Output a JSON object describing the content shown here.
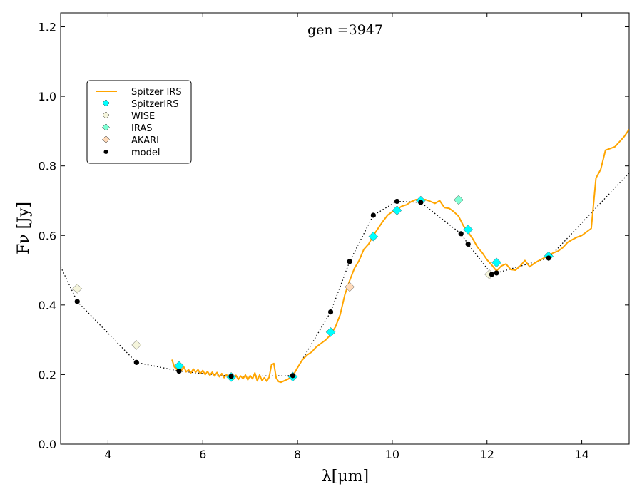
{
  "chart_data": {
    "type": "line",
    "title": "gen =3947",
    "xlabel": "λ[μm]",
    "ylabel": "Fν [Jy]",
    "xlim": [
      3,
      15
    ],
    "ylim": [
      0.0,
      1.24
    ],
    "xticks": [
      4,
      6,
      8,
      10,
      12,
      14
    ],
    "xtick_labels": [
      "4",
      "6",
      "8",
      "10",
      "12",
      "14"
    ],
    "yticks": [
      0.0,
      0.2,
      0.4,
      0.6,
      0.8,
      1.0,
      1.2
    ],
    "ytick_labels": [
      "0.0",
      "0.2",
      "0.4",
      "0.6",
      "0.8",
      "1.0",
      "1.2"
    ],
    "legend": {
      "placement": "upper-left",
      "entries": [
        "Spitzer IRS",
        "SpitzerIRS",
        "WISE",
        "IRAS",
        "AKARI",
        "model"
      ]
    },
    "series": [
      {
        "name": "Spitzer IRS",
        "kind": "line",
        "color": "#FFA500",
        "x": [
          5.35,
          5.4,
          5.45,
          5.5,
          5.55,
          5.6,
          5.65,
          5.7,
          5.75,
          5.8,
          5.85,
          5.9,
          5.95,
          6.0,
          6.05,
          6.1,
          6.15,
          6.2,
          6.25,
          6.3,
          6.35,
          6.4,
          6.45,
          6.5,
          6.55,
          6.6,
          6.65,
          6.7,
          6.75,
          6.8,
          6.85,
          6.9,
          6.95,
          7.0,
          7.05,
          7.1,
          7.15,
          7.2,
          7.25,
          7.3,
          7.35,
          7.4,
          7.45,
          7.5,
          7.55,
          7.6,
          7.65,
          7.7,
          7.8,
          7.9,
          8.0,
          8.1,
          8.2,
          8.3,
          8.4,
          8.5,
          8.6,
          8.7,
          8.8,
          8.9,
          9.0,
          9.1,
          9.2,
          9.3,
          9.4,
          9.5,
          9.6,
          9.7,
          9.8,
          9.9,
          10.0,
          10.1,
          10.2,
          10.3,
          10.4,
          10.5,
          10.6,
          10.7,
          10.8,
          10.9,
          11.0,
          11.1,
          11.2,
          11.3,
          11.4,
          11.5,
          11.6,
          11.7,
          11.8,
          11.9,
          12.0,
          12.1,
          12.2,
          12.3,
          12.4,
          12.5,
          12.6,
          12.7,
          12.8,
          12.9,
          13.0,
          13.1,
          13.2,
          13.3,
          13.4,
          13.5,
          13.6,
          13.7,
          13.8,
          13.9,
          14.0,
          14.1,
          14.2,
          14.3,
          14.4,
          14.5,
          14.6,
          14.7,
          14.8,
          14.9,
          15.0
        ],
        "y": [
          0.243,
          0.222,
          0.215,
          0.228,
          0.212,
          0.222,
          0.208,
          0.214,
          0.205,
          0.216,
          0.207,
          0.214,
          0.203,
          0.212,
          0.2,
          0.209,
          0.198,
          0.207,
          0.196,
          0.206,
          0.194,
          0.203,
          0.191,
          0.2,
          0.189,
          0.197,
          0.187,
          0.198,
          0.186,
          0.196,
          0.188,
          0.199,
          0.185,
          0.197,
          0.188,
          0.205,
          0.182,
          0.199,
          0.183,
          0.191,
          0.181,
          0.192,
          0.228,
          0.232,
          0.19,
          0.18,
          0.178,
          0.181,
          0.187,
          0.196,
          0.22,
          0.242,
          0.256,
          0.265,
          0.28,
          0.29,
          0.3,
          0.315,
          0.337,
          0.372,
          0.43,
          0.47,
          0.505,
          0.528,
          0.56,
          0.575,
          0.6,
          0.62,
          0.64,
          0.658,
          0.668,
          0.675,
          0.684,
          0.688,
          0.697,
          0.703,
          0.702,
          0.703,
          0.698,
          0.692,
          0.7,
          0.68,
          0.678,
          0.668,
          0.655,
          0.628,
          0.61,
          0.59,
          0.566,
          0.55,
          0.53,
          0.515,
          0.498,
          0.512,
          0.518,
          0.502,
          0.5,
          0.512,
          0.528,
          0.51,
          0.52,
          0.528,
          0.535,
          0.542,
          0.55,
          0.555,
          0.565,
          0.58,
          0.588,
          0.595,
          0.6,
          0.61,
          0.62,
          0.765,
          0.79,
          0.845,
          0.85,
          0.855,
          0.87,
          0.885,
          0.905
        ]
      },
      {
        "name": "model",
        "kind": "dotted-line-with-points",
        "color": "#000000",
        "x": [
          3.35,
          4.6,
          5.5,
          6.6,
          7.9,
          8.7,
          9.1,
          9.6,
          10.1,
          10.6,
          11.45,
          11.6,
          12.1,
          12.2,
          13.3
        ],
        "y": [
          0.41,
          0.235,
          0.21,
          0.195,
          0.197,
          0.38,
          0.525,
          0.658,
          0.698,
          0.695,
          0.605,
          0.575,
          0.488,
          0.492,
          0.535
        ],
        "line_x_extra": [
          3.0,
          15.0
        ],
        "line_y_extra": [
          0.51,
          0.78
        ]
      },
      {
        "name": "SpitzerIRS",
        "kind": "diamond",
        "color": "#00FFFF",
        "x": [
          5.5,
          6.6,
          7.9,
          8.7,
          9.6,
          10.1,
          10.6,
          11.6,
          12.2,
          13.3
        ],
        "y": [
          0.225,
          0.193,
          0.194,
          0.322,
          0.597,
          0.672,
          0.7,
          0.617,
          0.522,
          0.54
        ]
      },
      {
        "name": "WISE",
        "kind": "diamond",
        "color": "#F5F5DC",
        "x": [
          3.35,
          4.6,
          12.05
        ],
        "y": [
          0.447,
          0.285,
          0.488
        ]
      },
      {
        "name": "IRAS",
        "kind": "diamond",
        "color": "#7FFFD4",
        "x": [
          11.4
        ],
        "y": [
          0.702
        ]
      },
      {
        "name": "AKARI",
        "kind": "diamond",
        "color": "#FFDAB9",
        "x": [
          9.1
        ],
        "y": [
          0.452
        ]
      }
    ]
  }
}
